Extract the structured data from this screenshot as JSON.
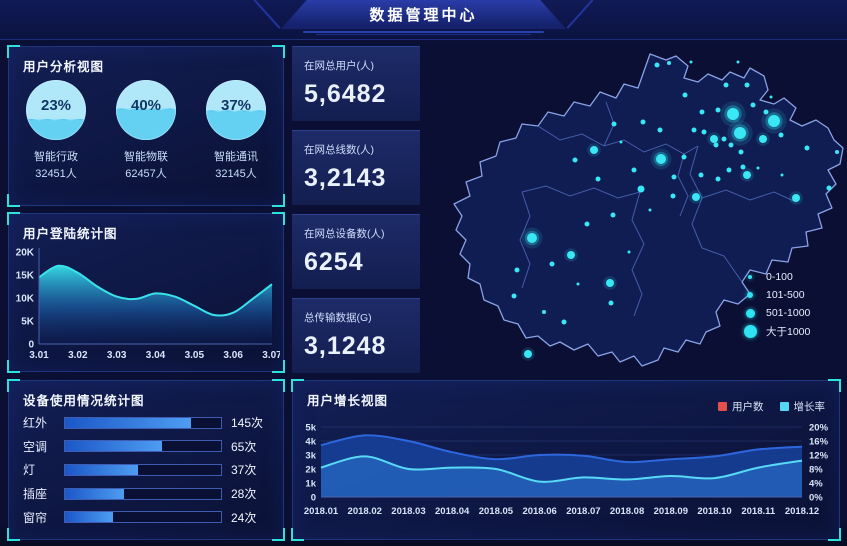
{
  "header": {
    "title": "数据管理中心"
  },
  "panels": {
    "user_analysis": {
      "title": "用户分析视图"
    },
    "login_stats": {
      "title": "用户登陆统计图"
    },
    "device_usage": {
      "title": "设备使用情况统计图"
    },
    "user_growth": {
      "title": "用户增长视图"
    }
  },
  "stats": [
    {
      "label": "在网总用户(人)",
      "value": "5,6482"
    },
    {
      "label": "在网总线数(人)",
      "value": "3,2143"
    },
    {
      "label": "在网总设备数(人)",
      "value": "6254"
    },
    {
      "label": "总传输数据(G)",
      "value": "3,1248"
    }
  ],
  "colors": {
    "accent_cyan": "#2fe0db",
    "bubble_cyan": "#2fe3f2",
    "bar_blue": "#2f7ce8",
    "area_cyan": "#3ae2ea",
    "users_line_blue": "#2d67de",
    "growth_line_cyan": "#58d9f5",
    "legend_red": "#e2504e",
    "legend_cyan": "#53d7f3",
    "panel_border": "#20367c",
    "gauge_water": "#4fc8f0",
    "gauge_body": "#b0e8fa"
  },
  "chart_data": [
    {
      "id": "user-analysis-gauges",
      "type": "gauge",
      "title": "用户分析视图",
      "categories": [
        "智能行政",
        "智能物联",
        "智能通讯"
      ],
      "values": [
        23,
        40,
        37
      ],
      "display_percent": [
        "23%",
        "40%",
        "37%"
      ],
      "counts": [
        32451,
        62457,
        32145
      ],
      "display_counts": [
        "32451人",
        "62457人",
        "32145人"
      ]
    },
    {
      "id": "login-stats",
      "type": "area",
      "title": "用户登陆统计图",
      "x": [
        3.01,
        3.015,
        3.02,
        3.025,
        3.03,
        3.035,
        3.04,
        3.045,
        3.05,
        3.055,
        3.06,
        3.065,
        3.07
      ],
      "values_k": [
        14.5,
        17,
        15.5,
        12.5,
        10.3,
        9.8,
        11,
        10.3,
        8.3,
        6.3,
        6.8,
        9.8,
        13
      ],
      "ylabel": "",
      "xlabel": "",
      "ylim": [
        0,
        20
      ],
      "yticks": [
        "0",
        "5K",
        "10K",
        "15K",
        "20K"
      ],
      "xticks": [
        "3.01",
        "3.02",
        "3.03",
        "3.04",
        "3.05",
        "3.06",
        "3.07"
      ],
      "grid": false
    },
    {
      "id": "device-usage",
      "type": "bar",
      "title": "设备使用情况统计图",
      "orientation": "horizontal",
      "categories": [
        "红外",
        "空调",
        "灯",
        "插座",
        "窗帘"
      ],
      "values": [
        145,
        65,
        37,
        28,
        24
      ],
      "display_values": [
        "145次",
        "65次",
        "37次",
        "28次",
        "24次"
      ],
      "bar_fill_pct": [
        81,
        62,
        47,
        38,
        31
      ]
    },
    {
      "id": "user-growth",
      "type": "area",
      "title": "用户增长视图",
      "categories": [
        "2018.01",
        "2018.02",
        "2018.03",
        "2018.04",
        "2018.05",
        "2018.06",
        "2018.07",
        "2018.08",
        "2018.09",
        "2018.10",
        "2018.11",
        "2018.12"
      ],
      "series": [
        {
          "name": "用户数",
          "axis": "left",
          "legend_color": "#e2504e",
          "line_color": "#2d67de",
          "fill_color": "#163f96",
          "values_k": [
            3.7,
            4.4,
            4.0,
            3.2,
            2.7,
            3.0,
            2.95,
            2.5,
            2.7,
            2.9,
            3.4,
            3.6
          ]
        },
        {
          "name": "增长率",
          "axis": "right",
          "legend_color": "#53d7f3",
          "line_color": "#58d9f5",
          "fill_color": "#2d7bd9",
          "values_pct": [
            8.4,
            11.6,
            8.0,
            8.4,
            8.0,
            4.4,
            5.6,
            5.0,
            6.0,
            5.4,
            8.4,
            10.4
          ]
        }
      ],
      "ylim_left": [
        0,
        5
      ],
      "yticks_left": [
        "0",
        "1k",
        "2k",
        "3k",
        "4k",
        "5k"
      ],
      "ylim_right": [
        0,
        20
      ],
      "yticks_right": [
        "0%",
        "4%",
        "8%",
        "12%",
        "16%",
        "20%"
      ],
      "legend_position": "top-right",
      "grid": true
    },
    {
      "id": "region-map",
      "type": "scatter",
      "legend": [
        {
          "label": "0-100",
          "r": 2
        },
        {
          "label": "101-500",
          "r": 3
        },
        {
          "label": "501-1000",
          "r": 4.5
        },
        {
          "label": "大于1000",
          "r": 6.5
        }
      ],
      "bubbles": [
        [
          307,
          70,
          6
        ],
        [
          314,
          89,
          6
        ],
        [
          348,
          77,
          6
        ],
        [
          235,
          115,
          5
        ],
        [
          106,
          194,
          5
        ],
        [
          168,
          106,
          4
        ],
        [
          337,
          95,
          4
        ],
        [
          288,
          95,
          4
        ],
        [
          321,
          131,
          4
        ],
        [
          270,
          153,
          4
        ],
        [
          145,
          211,
          4
        ],
        [
          184,
          239,
          4
        ],
        [
          370,
          154,
          4
        ],
        [
          215,
          145,
          3.5
        ],
        [
          102,
          310,
          4
        ],
        [
          259,
          51,
          2.5
        ],
        [
          300,
          41,
          2.5
        ],
        [
          321,
          41,
          2.5
        ],
        [
          276,
          68,
          2.5
        ],
        [
          292,
          66,
          2.5
        ],
        [
          327,
          61,
          2.5
        ],
        [
          340,
          68,
          2.5
        ],
        [
          355,
          91,
          2.5
        ],
        [
          315,
          108,
          2.5
        ],
        [
          298,
          95,
          2.5
        ],
        [
          278,
          88,
          2.5
        ],
        [
          268,
          86,
          2.5
        ],
        [
          290,
          101,
          2.5
        ],
        [
          305,
          101,
          2.5
        ],
        [
          317,
          123,
          2.5
        ],
        [
          303,
          126,
          2.5
        ],
        [
          292,
          135,
          2.5
        ],
        [
          275,
          131,
          2.5
        ],
        [
          258,
          113,
          2.5
        ],
        [
          234,
          86,
          2.5
        ],
        [
          188,
          80,
          2.5
        ],
        [
          217,
          78,
          2.5
        ],
        [
          149,
          116,
          2.5
        ],
        [
          208,
          126,
          2.5
        ],
        [
          172,
          135,
          2.5
        ],
        [
          248,
          133,
          2.5
        ],
        [
          247,
          152,
          2.5
        ],
        [
          187,
          171,
          2.5
        ],
        [
          161,
          180,
          2.5
        ],
        [
          381,
          104,
          2.5
        ],
        [
          403,
          144,
          2.5
        ],
        [
          411,
          108,
          2
        ],
        [
          126,
          220,
          2.5
        ],
        [
          138,
          278,
          2.5
        ],
        [
          88,
          252,
          2.5
        ],
        [
          185,
          259,
          2.5
        ],
        [
          91,
          226,
          2.5
        ],
        [
          118,
          268,
          2
        ],
        [
          231,
          21,
          2.5
        ],
        [
          243,
          19,
          2
        ],
        [
          312,
          18,
          1.5
        ],
        [
          345,
          53,
          1.5
        ],
        [
          265,
          18,
          1.5
        ],
        [
          195,
          98,
          1.5
        ],
        [
          224,
          166,
          1.5
        ],
        [
          332,
          124,
          1.5
        ],
        [
          356,
          131,
          1.5
        ],
        [
          203,
          208,
          1.5
        ],
        [
          152,
          240,
          1.5
        ]
      ]
    }
  ]
}
